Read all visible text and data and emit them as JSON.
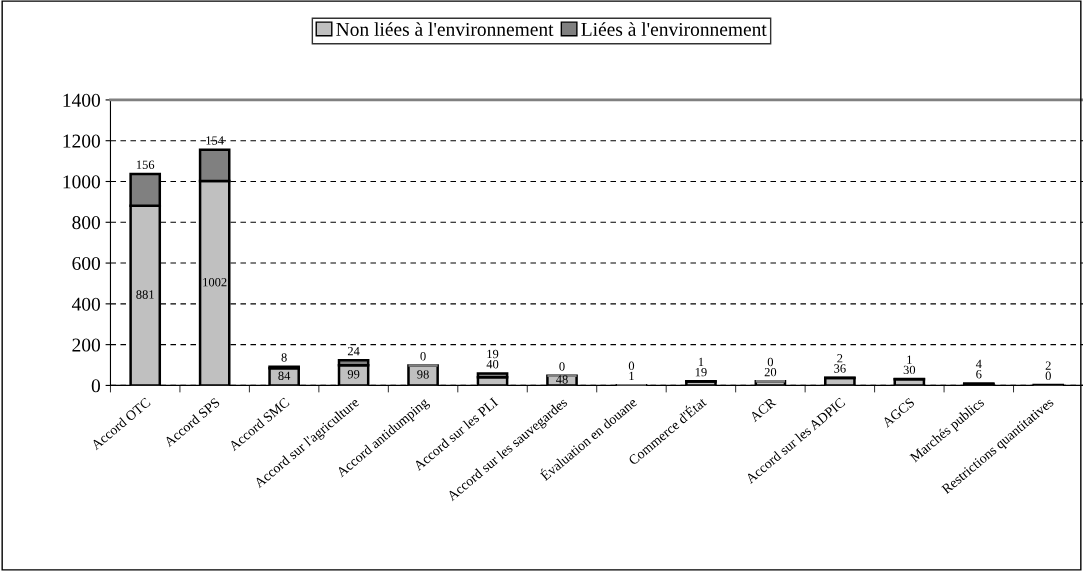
{
  "chart_data": {
    "type": "bar",
    "stacked": true,
    "categories": [
      "Accord OTC",
      "Accord SPS",
      "Accord SMC",
      "Accord sur l'agriculture",
      "Accord antidumping",
      "Accord sur les PLI",
      "Accord sur les sauvegardes",
      "Évaluation en douane",
      "Commerce d'État",
      "ACR",
      "Accord sur les ADPIC",
      "AGCS",
      "Marchés publics",
      "Restrictions quantitatives"
    ],
    "series": [
      {
        "name": "Non liées à l'environnement",
        "color": "#c0c0c0",
        "values": [
          881,
          1002,
          84,
          99,
          98,
          40,
          48,
          1,
          19,
          20,
          36,
          30,
          6,
          0
        ]
      },
      {
        "name": "Liées à l'environnement",
        "color": "#808080",
        "values": [
          156,
          154,
          8,
          24,
          0,
          19,
          0,
          0,
          1,
          0,
          2,
          1,
          4,
          2
        ]
      }
    ],
    "ylim": [
      0,
      1400
    ],
    "yticks": [
      0,
      200,
      400,
      600,
      800,
      1000,
      1200,
      1400
    ],
    "grid": "y",
    "legend": "top",
    "data_labels": true
  }
}
